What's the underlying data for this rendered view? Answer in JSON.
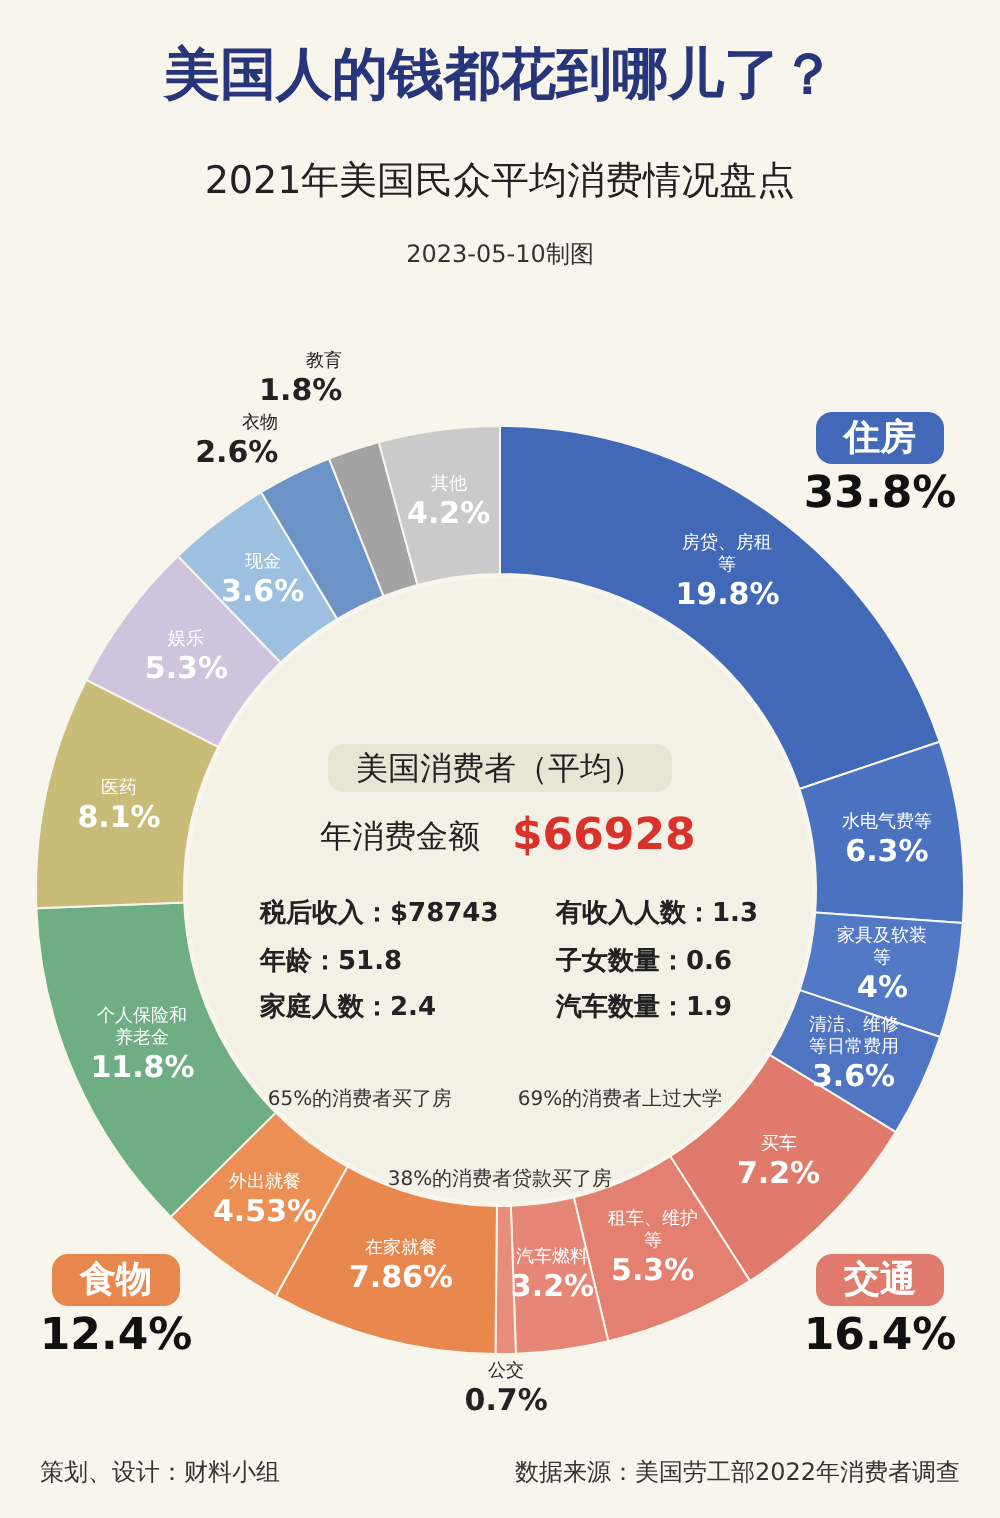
{
  "chart_data": {
    "type": "donut",
    "title": "美国人的钱都花到哪儿了？",
    "subtitle": "2021年美国民众平均消费情况盘点",
    "categories": [
      "房贷、房租等",
      "水电气费等",
      "家具及软装等",
      "清洁、维修等日常费用",
      "买车",
      "租车、维护等",
      "汽车燃料",
      "公交",
      "在家就餐",
      "外出就餐",
      "个人保险和养老金",
      "医药",
      "娱乐",
      "现金",
      "衣物",
      "教育",
      "其他"
    ],
    "values": [
      19.8,
      6.3,
      4,
      3.6,
      7.2,
      5.3,
      3.2,
      0.7,
      7.86,
      4.53,
      11.8,
      8.1,
      5.3,
      3.6,
      2.6,
      1.8,
      4.2
    ],
    "colors": [
      "#4169b8",
      "#4a72c0",
      "#5279c6",
      "#4e74c2",
      "#e07a6c",
      "#e3806f",
      "#e58676",
      "#e88c7c",
      "#e8874e",
      "#eb8f55",
      "#6fae84",
      "#c8bc78",
      "#cfc4de",
      "#9dc0e0",
      "#6c93c6",
      "#a3a3a3",
      "#cacaca"
    ],
    "data_labels": true,
    "value_labels": [
      "19.8%",
      "6.3%",
      "4%",
      "3.6%",
      "7.2%",
      "5.3%",
      "3.2%",
      "0.7%",
      "7.86%",
      "4.53%",
      "11.8%",
      "8.1%",
      "5.3%",
      "3.6%",
      "2.6%",
      "1.8%",
      "4.2%"
    ],
    "annotations": [
      "2023-05-10制图",
      "住房",
      "33.8%",
      "交通",
      "16.4%",
      "食物",
      "12.4%",
      "美国消费者（平均）",
      "年消费金额",
      "$66928",
      "税后收入：$78743",
      "有收入人数：1.3",
      "年龄：51.8",
      "子女数量：0.6",
      "家庭人数：2.4",
      "汽车数量：1.9",
      "65%的消费者买了房",
      "69%的消费者上过大学",
      "38%的消费者贷款买了房",
      "策划、设计：财料小组",
      "数据来源：美国劳工部2022年消费者调查"
    ]
  }
}
